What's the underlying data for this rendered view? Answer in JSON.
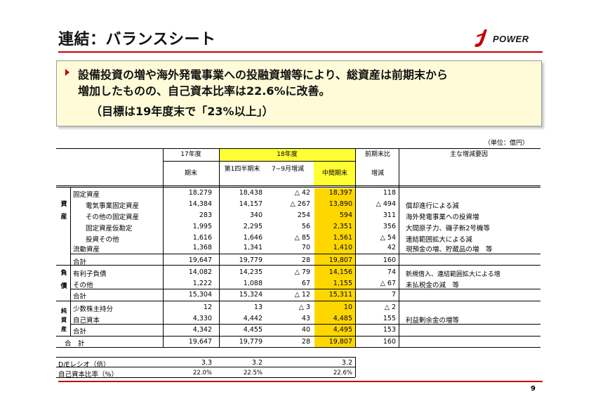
{
  "header": {
    "title": "連結：バランスシート",
    "logo_text": "POWER"
  },
  "callout": {
    "line1": "設備投資の増や海外発電事業への投融資増等により、総資産は前期末から",
    "line2": "増加したものの、自己資本比率は22.6%に改善。",
    "line3": "（目標は19年度末で「23%以上」）"
  },
  "table": {
    "unit": "（単位：億円）",
    "headers": {
      "fy17": "17年度",
      "fy18": "18年度",
      "prev_change": "前期末比",
      "reason": "主な増減要因",
      "period_end": "期末",
      "q1_end": "第1四半期末",
      "jul_sep_change": "7−9月増減",
      "interim_end": "中間期末",
      "change": "増減"
    },
    "categories": {
      "assets": "資産",
      "liabilities": "負債",
      "net_assets": "純資産"
    },
    "rows": [
      {
        "label": "固定資産",
        "fy17": "18,279",
        "q1": "18,438",
        "qchg": "△ 42",
        "interim": "18,397",
        "chg": "118",
        "reason": ""
      },
      {
        "label": "電気事業固定資産",
        "fy17": "14,384",
        "q1": "14,157",
        "qchg": "△ 267",
        "interim": "13,890",
        "chg": "△ 494",
        "reason": "償却進行による減"
      },
      {
        "label": "その他の固定資産",
        "fy17": "283",
        "q1": "340",
        "qchg": "254",
        "interim": "594",
        "chg": "311",
        "reason": "海外発電事業への投資増"
      },
      {
        "label": "固定資産仮勘定",
        "fy17": "1,995",
        "q1": "2,295",
        "qchg": "56",
        "interim": "2,351",
        "chg": "356",
        "reason": "大間原子力、磯子新2号機等"
      },
      {
        "label": "投資その他",
        "fy17": "1,616",
        "q1": "1,646",
        "qchg": "△ 85",
        "interim": "1,561",
        "chg": "△ 54",
        "reason": "連結範囲拡大による減"
      },
      {
        "label": "流動資産",
        "fy17": "1,368",
        "q1": "1,341",
        "qchg": "70",
        "interim": "1,410",
        "chg": "42",
        "reason": "現預金の増、貯蔵品の増　等"
      },
      {
        "label": "合計",
        "fy17": "19,647",
        "q1": "19,779",
        "qchg": "28",
        "interim": "19,807",
        "chg": "160",
        "reason": ""
      },
      {
        "label": "有利子負債",
        "fy17": "14,082",
        "q1": "14,235",
        "qchg": "△ 79",
        "interim": "14,156",
        "chg": "74",
        "reason": "新規借入、連結範囲拡大による増"
      },
      {
        "label": "その他",
        "fy17": "1,222",
        "q1": "1,088",
        "qchg": "67",
        "interim": "1,155",
        "chg": "△ 67",
        "reason": "未払税金の減　等"
      },
      {
        "label": "合計",
        "fy17": "15,304",
        "q1": "15,324",
        "qchg": "△ 12",
        "interim": "15,311",
        "chg": "7",
        "reason": ""
      },
      {
        "label": "少数株主持分",
        "fy17": "12",
        "q1": "13",
        "qchg": "△ 3",
        "interim": "10",
        "chg": "△ 2",
        "reason": ""
      },
      {
        "label": "自己資本",
        "fy17": "4,330",
        "q1": "4,442",
        "qchg": "43",
        "interim": "4,485",
        "chg": "155",
        "reason": "利益剰余金の増等"
      },
      {
        "label": "合計",
        "fy17": "4,342",
        "q1": "4,455",
        "qchg": "40",
        "interim": "4,495",
        "chg": "153",
        "reason": ""
      },
      {
        "label": "合　計",
        "fy17": "19,647",
        "q1": "19,779",
        "qchg": "28",
        "interim": "19,807",
        "chg": "160",
        "reason": ""
      }
    ],
    "ratios": [
      {
        "label": "D/Eレシオ（倍）",
        "fy17": "3.3",
        "q1": "3.2",
        "interim": "3.2"
      },
      {
        "label": "自己資本比率（%）",
        "fy17": "22.0%",
        "q1": "22.5%",
        "interim": "22.6%"
      }
    ]
  },
  "footer": {
    "page_number": "9"
  },
  "colors": {
    "accent_red": "#c40000",
    "highlight_yellow": "#ffff33",
    "highlight_gold": "#ffd700",
    "callout_bg": "#fffbd8"
  }
}
